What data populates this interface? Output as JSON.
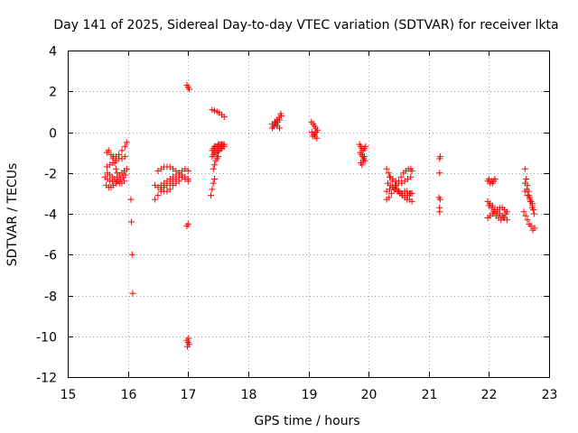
{
  "chart_data": {
    "type": "scatter",
    "title": "Day 141 of 2025, Sidereal Day-to-day VTEC variation (SDTVAR) for receiver lkta",
    "xlabel": "GPS time / hours",
    "ylabel": "SDTVAR / TECUs",
    "xlim": [
      15,
      23
    ],
    "ylim": [
      -12,
      4
    ],
    "xticks": [
      "15",
      "16",
      "17",
      "18",
      "19",
      "20",
      "21",
      "22",
      "23"
    ],
    "yticks": [
      "4",
      "2",
      "0",
      "-2",
      "-4",
      "-6",
      "-8",
      "-10",
      "-12"
    ],
    "grid": true,
    "marker": "plus",
    "color": "#ff0000",
    "series": [
      {
        "name": "SDTVAR",
        "x": [
          15.65,
          15.68,
          15.72,
          15.76,
          15.8,
          15.85,
          15.9,
          15.95,
          15.98,
          15.65,
          15.7,
          15.75,
          15.8,
          15.85,
          15.9,
          15.95,
          15.62,
          15.66,
          15.7,
          15.74,
          15.78,
          15.82,
          15.86,
          15.9,
          15.94,
          15.98,
          15.64,
          15.68,
          15.72,
          15.76,
          15.8,
          15.84,
          15.88,
          15.92,
          15.96,
          15.66,
          15.7,
          15.74,
          15.78,
          15.82,
          15.86,
          15.9,
          15.94,
          15.75,
          15.78,
          15.8,
          15.82,
          16.05,
          16.06,
          16.07,
          16.08,
          16.45,
          16.5,
          16.55,
          16.6,
          16.65,
          16.7,
          16.75,
          16.8,
          16.85,
          16.9,
          16.95,
          17.0,
          16.45,
          16.5,
          16.55,
          16.6,
          16.65,
          16.7,
          16.75,
          16.8,
          16.85,
          16.9,
          16.95,
          17.0,
          16.5,
          16.55,
          16.6,
          16.65,
          16.7,
          16.75,
          16.8,
          16.85,
          16.9,
          16.95,
          17.0,
          16.55,
          16.6,
          16.65,
          16.7,
          16.75,
          16.8,
          16.85,
          16.98,
          17.0,
          17.02,
          16.98,
          17.0,
          16.98,
          17.0,
          17.02,
          16.99,
          17.01,
          17.38,
          17.4,
          17.42,
          17.44,
          17.4,
          17.42,
          17.44,
          17.46,
          17.48,
          17.5,
          17.52,
          17.54,
          17.56,
          17.58,
          17.6,
          17.4,
          17.42,
          17.44,
          17.46,
          17.48,
          17.5,
          17.52,
          17.54,
          17.56,
          17.58,
          17.6,
          17.42,
          17.44,
          17.46,
          17.48,
          17.5,
          17.4,
          17.44,
          17.48,
          17.52,
          17.56,
          17.6,
          18.4,
          18.43,
          18.46,
          18.49,
          18.52,
          18.55,
          18.42,
          18.45,
          18.48,
          18.51,
          18.54,
          18.4,
          18.44,
          18.48,
          18.52,
          19.05,
          19.08,
          19.1,
          19.12,
          19.15,
          19.06,
          19.09,
          19.11,
          19.14,
          19.07,
          19.1,
          19.13,
          19.85,
          19.87,
          19.89,
          19.91,
          19.93,
          19.95,
          19.86,
          19.88,
          19.9,
          19.92,
          19.94,
          19.87,
          19.89,
          19.91,
          19.93,
          20.3,
          20.33,
          20.36,
          20.4,
          20.44,
          20.48,
          20.52,
          20.56,
          20.6,
          20.64,
          20.68,
          20.72,
          20.3,
          20.34,
          20.38,
          20.42,
          20.46,
          20.5,
          20.54,
          20.58,
          20.62,
          20.66,
          20.7,
          20.72,
          20.32,
          20.36,
          20.4,
          20.44,
          20.48,
          20.52,
          20.56,
          20.6,
          20.64,
          20.68,
          20.72,
          20.35,
          20.4,
          20.45,
          20.5,
          20.55,
          20.6,
          20.65,
          20.7,
          20.3,
          20.35,
          20.4,
          20.45,
          20.5,
          20.55,
          20.6,
          20.65,
          20.7,
          21.18,
          21.18,
          21.17,
          21.19,
          21.18,
          21.18,
          21.19,
          21.98,
          22.0,
          22.02,
          22.04,
          22.06,
          22.08,
          22.1,
          21.98,
          22.02,
          22.06,
          22.1,
          22.14,
          22.18,
          22.22,
          22.26,
          22.3,
          21.98,
          22.02,
          22.06,
          22.1,
          22.14,
          22.18,
          22.22,
          22.26,
          22.3,
          22.0,
          22.04,
          22.08,
          22.12,
          22.16,
          22.2,
          22.24,
          22.28,
          22.6,
          22.62,
          22.64,
          22.66,
          22.68,
          22.7,
          22.72,
          22.74,
          22.6,
          22.63,
          22.66,
          22.69,
          22.72,
          22.75,
          22.58,
          22.61,
          22.64,
          22.67,
          22.7,
          22.73,
          22.76,
          22.6,
          22.64,
          22.68,
          22.72
        ],
        "y": [
          -1.0,
          -0.9,
          -1.1,
          -1.2,
          -1.2,
          -1.1,
          -0.9,
          -0.7,
          -0.5,
          -1.7,
          -1.6,
          -1.5,
          -1.4,
          -1.3,
          -1.3,
          -1.2,
          -2.2,
          -2.3,
          -2.4,
          -2.4,
          -2.3,
          -2.2,
          -2.1,
          -2.0,
          -1.9,
          -1.8,
          -2.6,
          -2.7,
          -2.7,
          -2.6,
          -2.5,
          -2.4,
          -2.3,
          -2.2,
          -2.1,
          -2.0,
          -2.1,
          -2.2,
          -2.3,
          -2.4,
          -2.5,
          -2.5,
          -2.4,
          -1.3,
          -1.5,
          -1.8,
          -2.0,
          -3.3,
          -4.4,
          -6.0,
          -7.9,
          -3.3,
          -3.1,
          -2.9,
          -2.7,
          -2.6,
          -2.5,
          -2.4,
          -2.3,
          -2.2,
          -2.2,
          -2.3,
          -2.4,
          -2.6,
          -2.7,
          -2.6,
          -2.5,
          -2.4,
          -2.3,
          -2.2,
          -2.1,
          -2.0,
          -1.9,
          -1.8,
          -1.9,
          -1.9,
          -1.8,
          -1.7,
          -1.7,
          -1.7,
          -1.8,
          -1.9,
          -2.0,
          -2.1,
          -2.2,
          -2.3,
          -2.8,
          -2.9,
          -2.9,
          -2.8,
          -2.6,
          -2.5,
          -2.4,
          2.3,
          2.2,
          2.1,
          -4.6,
          -4.5,
          -10.2,
          -10.3,
          -10.4,
          -10.5,
          -10.1,
          -3.1,
          -2.8,
          -2.5,
          -2.3,
          -0.9,
          -0.8,
          -0.7,
          -0.7,
          -0.7,
          -0.6,
          -0.6,
          -0.6,
          -0.6,
          -0.6,
          -0.6,
          -1.2,
          -1.1,
          -1.0,
          -1.0,
          -1.0,
          -0.9,
          -0.9,
          -0.8,
          -0.8,
          -0.7,
          -0.7,
          -1.8,
          -1.6,
          -1.4,
          -1.3,
          -1.2,
          1.1,
          1.05,
          1.0,
          0.95,
          0.85,
          0.75,
          0.2,
          0.3,
          0.4,
          0.5,
          0.6,
          0.8,
          0.3,
          0.5,
          0.6,
          0.7,
          0.9,
          0.4,
          0.5,
          0.3,
          0.2,
          0.5,
          0.4,
          0.3,
          0.2,
          0.1,
          0.0,
          -0.1,
          -0.2,
          -0.3,
          -0.2,
          -0.1,
          0.0,
          -0.6,
          -0.7,
          -0.8,
          -0.9,
          -0.8,
          -0.7,
          -1.0,
          -1.1,
          -1.2,
          -1.3,
          -1.4,
          -1.5,
          -1.6,
          -1.4,
          -1.2,
          -1.8,
          -2.0,
          -2.2,
          -2.4,
          -2.6,
          -2.8,
          -3.0,
          -3.1,
          -3.2,
          -3.3,
          -3.3,
          -3.4,
          -3.3,
          -3.2,
          -3.0,
          -2.8,
          -2.6,
          -2.4,
          -2.2,
          -2.0,
          -1.9,
          -1.8,
          -1.8,
          -1.9,
          -2.5,
          -2.6,
          -2.7,
          -2.8,
          -2.9,
          -3.0,
          -3.0,
          -2.9,
          -2.9,
          -3.0,
          -3.0,
          -2.2,
          -2.3,
          -2.4,
          -2.5,
          -2.5,
          -2.4,
          -2.3,
          -2.2,
          -2.9,
          -2.8,
          -2.7,
          -2.8,
          -2.9,
          -3.0,
          -3.1,
          -3.1,
          -3.0,
          -1.3,
          -2.0,
          -3.2,
          -3.3,
          -3.7,
          -3.9,
          -1.2,
          -2.4,
          -2.3,
          -2.5,
          -2.4,
          -2.5,
          -2.4,
          -2.3,
          -3.4,
          -3.5,
          -3.6,
          -3.8,
          -3.9,
          -4.0,
          -4.1,
          -4.2,
          -4.3,
          -4.2,
          -4.1,
          -4.0,
          -3.9,
          -3.8,
          -3.7,
          -3.7,
          -3.8,
          -3.9,
          -3.6,
          -3.7,
          -3.9,
          -4.1,
          -4.2,
          -4.3,
          -4.2,
          -4.0,
          -1.8,
          -2.3,
          -2.6,
          -2.9,
          -3.2,
          -3.4,
          -3.6,
          -3.8,
          -2.5,
          -2.8,
          -3.1,
          -3.4,
          -3.7,
          -4.0,
          -3.9,
          -4.1,
          -4.3,
          -4.5,
          -4.6,
          -4.8,
          -4.7,
          -2.9,
          -3.1,
          -3.3,
          -3.5
        ]
      }
    ]
  }
}
